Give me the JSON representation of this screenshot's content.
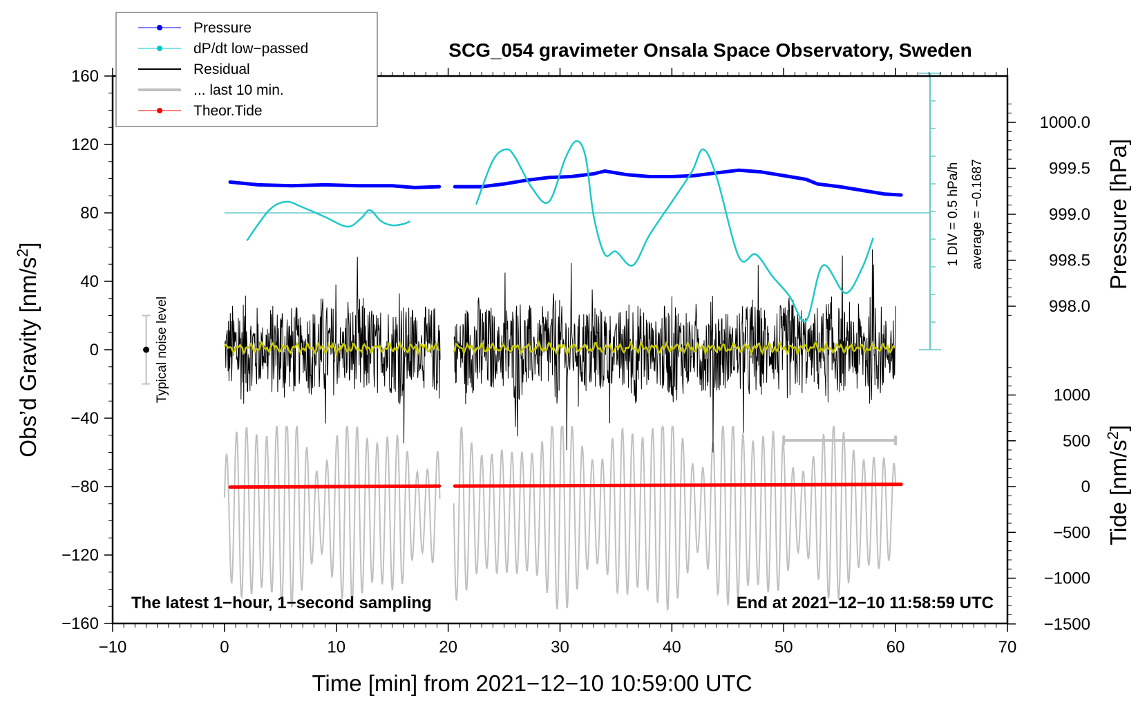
{
  "chart_data": {
    "type": "line",
    "title": "SCG_054 gravimeter Onsala Space Observatory, Sweden",
    "xlabel": "Time [min] from 2021−12−10 10:59:00 UTC",
    "ylabel_left": "Obs’d Gravity [nm/s²]",
    "ylabel_right_top": "Pressure [hPa]",
    "ylabel_right_bottom": "Tide [nm/s²]",
    "xlim": [
      -10,
      70
    ],
    "ylim": [
      -160,
      160
    ],
    "x_ticks": [
      -10,
      0,
      10,
      20,
      30,
      40,
      50,
      60,
      70
    ],
    "x_tick_labels": [
      "−10",
      "0",
      "10",
      "20",
      "30",
      "40",
      "50",
      "60",
      "70"
    ],
    "y_ticks": [
      160,
      120,
      80,
      40,
      0,
      -40,
      -80,
      -120,
      -160
    ],
    "y_tick_labels": [
      "160",
      "120",
      "80",
      "40",
      "0",
      "−40",
      "−80",
      "−120",
      "−160"
    ],
    "pressure_axis": {
      "ticks": [
        1000.0,
        999.5,
        999.0,
        998.5,
        998.0
      ],
      "tick_labels": [
        "1000.0",
        "999.5",
        "999.0",
        "998.5",
        "998.0"
      ],
      "range": [
        997.5,
        1000.5
      ]
    },
    "tide_axis": {
      "ticks": [
        1000,
        500,
        0,
        -500,
        -1000,
        -1500
      ],
      "tick_labels": [
        "1000",
        "500",
        "0",
        "−500",
        "−1000",
        "−1500"
      ]
    },
    "gap_minutes": [
      19.3,
      20.5
    ],
    "data_range_minutes": [
      0,
      60
    ],
    "series": [
      {
        "name": "Pressure",
        "color": "#0000ff",
        "unit": "hPa",
        "x": [
          0.5,
          3,
          6,
          9,
          12,
          15,
          17,
          19.2,
          20.6,
          23,
          25,
          27,
          29,
          31,
          33,
          34,
          35,
          36,
          38,
          40,
          42,
          44,
          46,
          48,
          50,
          52,
          53,
          55,
          57,
          59,
          60.5
        ],
        "values": [
          999.35,
          999.32,
          999.31,
          999.32,
          999.31,
          999.31,
          999.29,
          999.3,
          999.3,
          999.3,
          999.33,
          999.37,
          999.4,
          999.41,
          999.44,
          999.47,
          999.45,
          999.43,
          999.41,
          999.41,
          999.42,
          999.45,
          999.48,
          999.46,
          999.42,
          999.38,
          999.33,
          999.3,
          999.26,
          999.22,
          999.21
        ]
      },
      {
        "name": "dP/dt low−passed",
        "color": "#00c8c8",
        "unit": "DIV (1 DIV = 0.5 hPa/h)",
        "segments": [
          {
            "x": [
              2,
              4,
              5.5,
              7,
              9,
              11,
              12.2,
              13,
              14,
              15,
              16,
              16.6
            ],
            "values": [
              -1.0,
              0.1,
              0.4,
              0.2,
              -0.15,
              -0.5,
              -0.2,
              0.1,
              -0.3,
              -0.45,
              -0.4,
              -0.3
            ]
          },
          {
            "x": [
              22.5,
              24,
              25.2,
              26,
              27.5,
              29,
              30.5,
              31.5,
              32.3,
              33,
              34,
              35,
              36.5,
              38,
              40,
              41.8,
              42.8,
              44,
              46,
              47.5,
              49,
              50.5,
              52,
              53.5,
              55.5,
              57,
              58
            ],
            "values": [
              0.3,
              1.9,
              2.3,
              2.0,
              0.9,
              0.4,
              2.0,
              2.6,
              2.0,
              -0.1,
              -1.5,
              -1.4,
              -1.9,
              -0.8,
              0.4,
              1.5,
              2.3,
              1.3,
              -1.6,
              -1.5,
              -2.3,
              -3.0,
              -3.9,
              -1.9,
              -2.9,
              -2.0,
              -0.9
            ]
          }
        ],
        "reference_level_nm_s2": 80,
        "scale_text": "1 DIV = 0.5 hPa/h",
        "average_text": "average = −0.1687"
      },
      {
        "name": "Residual",
        "color": "#000000",
        "unit": "nm/s²",
        "description": "1-second residual gravity, approx. ±30 nm/s² envelope with spikes up to ~70 and down to ~-60",
        "envelope_peaks_max": 70,
        "envelope_peaks_min": -60
      },
      {
        "name": "Residual smoothed",
        "color": "#c8c800",
        "unit": "nm/s²",
        "description": "near-zero smoothed residual",
        "approx_value": 1
      },
      {
        "name": "... last 10 min.",
        "color": "#c0c0c0",
        "unit": "nm/s² (offset -80)",
        "x_range": [
          50,
          60
        ],
        "description": "oscillating trace of the last 10 minutes, magnified, centered near -95 nm/s²"
      },
      {
        "name": "Theor.Tide",
        "color": "#ff0000",
        "unit": "nm/s²",
        "x": [
          0.5,
          10,
          19.2,
          20.6,
          30,
          40,
          50,
          60.5
        ],
        "values": [
          -5,
          0,
          5,
          5,
          10,
          15,
          20,
          25
        ]
      }
    ],
    "legend": {
      "placement": "top-left",
      "entries": [
        {
          "label": "Pressure",
          "color": "#0000ff",
          "marker": "dot"
        },
        {
          "label": "dP/dt low−passed",
          "color": "#00c8c8",
          "marker": "dot"
        },
        {
          "label": "Residual",
          "color": "#000000",
          "marker": "line"
        },
        {
          "label": "... last 10 min.",
          "color": "#c0c0c0",
          "marker": "line"
        },
        {
          "label": "Theor.Tide",
          "color": "#ff0000",
          "marker": "dot"
        }
      ]
    },
    "annotations": {
      "noise_label": "Typical noise level",
      "noise_bar": {
        "x": -7,
        "center": 0,
        "half_range": 20
      },
      "bottom_left": "The latest 1−hour, 1−second sampling",
      "bottom_right": "End at 2021−12−10 11:58:59 UTC",
      "last10_bar": {
        "x_start": 50,
        "x_end": 60,
        "y": -53
      }
    },
    "grid": false
  }
}
